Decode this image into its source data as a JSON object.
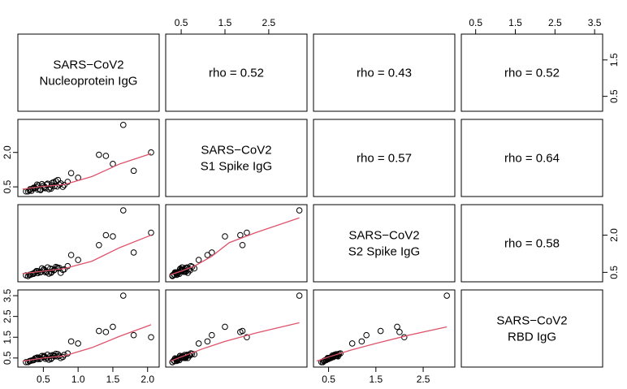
{
  "chart_data": {
    "type": "pairs",
    "point_color": "#000000",
    "smooth_color": "#df536b",
    "variables": [
      {
        "label": [
          "SARS−CoV2",
          "Nucleoprotein IgG"
        ],
        "lim": [
          0.18,
          2.12
        ],
        "xticks": [
          0.5,
          {
            "value": 1,
            "label": "1.0"
          },
          1.5,
          {
            "value": 2,
            "label": "2.0"
          }
        ],
        "yticks": [
          0.5,
          1.5
        ],
        "values": [
          0.3,
          0.35,
          0.4,
          0.45,
          0.5,
          0.55,
          0.6,
          0.65,
          0.7,
          0.75,
          0.8,
          0.28,
          0.38,
          0.48,
          0.58,
          0.68,
          0.78,
          0.33,
          0.43,
          0.53,
          0.63,
          0.73,
          0.25,
          0.85,
          0.42,
          0.52,
          0.62,
          0.36,
          0.46,
          0.56,
          0.66,
          0.31,
          0.41,
          0.51,
          0.61,
          0.71,
          1.65,
          1.3,
          1.4,
          1.5,
          1.8,
          2.05,
          0.9,
          1.0
        ]
      },
      {
        "label": [
          "SARS−CoV2",
          "S1 Spike IgG"
        ],
        "lim": [
          0.22,
          3.3
        ],
        "xticks": [
          0.5,
          1.5,
          2.5
        ],
        "yticks": [
          0.5,
          {
            "value": 2,
            "label": "2.0"
          }
        ],
        "values": [
          0.35,
          0.42,
          0.5,
          0.38,
          0.55,
          0.6,
          0.48,
          0.7,
          0.52,
          0.65,
          0.58,
          0.3,
          0.45,
          0.62,
          0.4,
          0.75,
          0.5,
          0.33,
          0.56,
          0.44,
          0.68,
          0.6,
          0.3,
          0.72,
          0.38,
          0.5,
          0.57,
          0.46,
          0.36,
          0.64,
          0.53,
          0.4,
          0.6,
          0.47,
          0.42,
          0.8,
          3.2,
          1.9,
          1.85,
          1.5,
          1.2,
          2.0,
          1.1,
          0.9
        ]
      },
      {
        "label": [
          "SARS−CoV2",
          "S2 Spike IgG"
        ],
        "lim": [
          0.25,
          3.1
        ],
        "xticks": [
          0.5,
          1.5,
          2.5
        ],
        "yticks": [
          0.5,
          {
            "value": 2,
            "label": "2.0"
          }
        ],
        "values": [
          0.4,
          0.45,
          0.55,
          0.5,
          0.6,
          0.52,
          0.65,
          0.58,
          0.7,
          0.48,
          0.62,
          0.35,
          0.5,
          0.66,
          0.45,
          0.72,
          0.6,
          0.42,
          0.54,
          0.5,
          0.63,
          0.68,
          0.38,
          0.75,
          0.47,
          0.57,
          0.52,
          0.44,
          0.5,
          0.7,
          0.6,
          0.4,
          0.55,
          0.62,
          0.48,
          0.66,
          3.0,
          1.6,
          2.0,
          1.95,
          1.3,
          2.1,
          1.2,
          1.0
        ]
      },
      {
        "label": [
          "SARS−CoV2",
          "RBD IgG"
        ],
        "lim": [
          0.22,
          3.62
        ],
        "xticks": [
          0.5,
          1.5,
          2.5,
          3.5
        ],
        "yticks": [
          0.5,
          1.5,
          2.5,
          3.5
        ],
        "values": [
          0.35,
          0.4,
          0.5,
          0.45,
          0.55,
          0.5,
          0.6,
          0.62,
          0.58,
          0.5,
          0.65,
          0.3,
          0.48,
          0.6,
          0.42,
          0.7,
          0.55,
          0.38,
          0.52,
          0.46,
          0.64,
          0.6,
          0.3,
          0.72,
          0.44,
          0.55,
          0.5,
          0.4,
          0.48,
          0.66,
          0.58,
          0.36,
          0.52,
          0.6,
          0.45,
          0.68,
          3.5,
          1.8,
          1.75,
          2.0,
          1.6,
          1.5,
          1.3,
          1.2
        ]
      }
    ],
    "correlations": [
      "rho = 0.52",
      "rho = 0.43",
      "rho = 0.52",
      "rho = 0.57",
      "rho = 0.64",
      "rho = 0.58"
    ],
    "smooths": [
      {
        "x": [
          0.2,
          0.5,
          0.8,
          1.2,
          1.6,
          2.05
        ],
        "y": [
          0.4,
          0.52,
          0.6,
          0.95,
          1.5,
          1.95
        ]
      },
      {
        "x": [
          0.2,
          0.5,
          0.8,
          1.2,
          1.6,
          2.05
        ],
        "y": [
          0.45,
          0.55,
          0.65,
          0.95,
          1.5,
          2.0
        ]
      },
      {
        "x": [
          0.25,
          0.5,
          0.8,
          1.2,
          1.6,
          2.2,
          3.2
        ],
        "y": [
          0.4,
          0.55,
          0.75,
          1.15,
          1.7,
          2.1,
          2.7
        ]
      },
      {
        "x": [
          0.2,
          0.5,
          0.8,
          1.2,
          1.6,
          2.05
        ],
        "y": [
          0.35,
          0.5,
          0.6,
          1.0,
          1.55,
          2.1
        ]
      },
      {
        "x": [
          0.25,
          0.5,
          1.0,
          1.5,
          2.2,
          3.2
        ],
        "y": [
          0.35,
          0.55,
          0.95,
          1.3,
          1.7,
          2.2
        ]
      },
      {
        "x": [
          0.25,
          0.5,
          1.0,
          1.5,
          2.2,
          3.0
        ],
        "y": [
          0.35,
          0.55,
          0.9,
          1.2,
          1.6,
          2.0
        ]
      }
    ]
  }
}
